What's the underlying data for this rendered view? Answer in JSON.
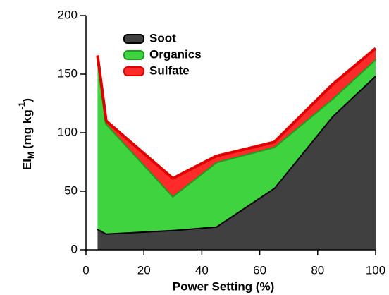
{
  "chart_data": {
    "type": "stacked_area",
    "xlabel": "Power Setting (%)",
    "ylabel": {
      "main": "EI",
      "sub": "M",
      "unit": "(mg kg",
      "sup": "-1",
      "close": ")"
    },
    "x": [
      4,
      7,
      30,
      45,
      65,
      85,
      100
    ],
    "series": [
      {
        "name": "Soot",
        "color": "#404040",
        "edge": "#000000",
        "values": [
          18,
          14,
          17,
          20,
          53,
          114,
          149
        ]
      },
      {
        "name": "Organics",
        "color": "#3fd43f",
        "edge": "#1e9e1e",
        "values": [
          147,
          94,
          29,
          55,
          35,
          15,
          14
        ]
      },
      {
        "name": "Sulfate",
        "color": "#ff2a2a",
        "edge": "#e00000",
        "values": [
          1,
          2,
          15,
          5,
          4,
          12,
          9
        ]
      }
    ],
    "xlim": [
      0,
      100
    ],
    "xticks": [
      0,
      20,
      40,
      60,
      80,
      100
    ],
    "ylim": [
      0,
      200
    ],
    "yticks": [
      0,
      50,
      100,
      150,
      200
    ],
    "legend": "upper left"
  }
}
